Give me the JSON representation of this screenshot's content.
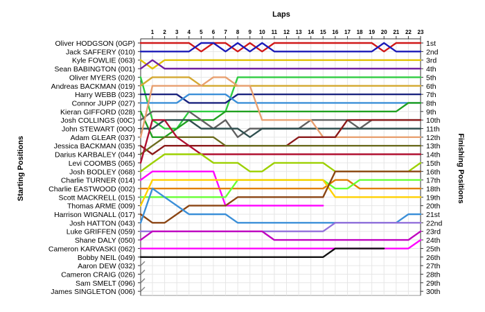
{
  "chart_data": {
    "type": "line",
    "title": "",
    "xlabel": "Laps",
    "ylabel_left": "Starting Positions",
    "ylabel_right": "Finishing Positions",
    "laps": [
      1,
      2,
      3,
      4,
      5,
      6,
      7,
      8,
      9,
      10,
      11,
      12,
      13,
      14,
      15,
      16,
      17,
      18,
      19,
      20,
      21,
      22,
      23
    ],
    "grid": true,
    "drivers": [
      "Oliver HODGSON (0GP)",
      "Jack SAFFERY (010)",
      "Kyle FOWLIE (063)",
      "Sean BABINGTON (001)",
      "Oliver MYERS (020)",
      "Andreas BACKMAN (019)",
      "Harry WEBB (023)",
      "Connor JUPP (027)",
      "Kieran GIFFORD (028)",
      "Josh COLLINGS (00C)",
      "John STEWART (00O)",
      "Adam GLEAR (037)",
      "Jessica BACKMAN (035)",
      "Darius KARBALEY (044)",
      "Levi COOMBS (065)",
      "Josh BODLEY (068)",
      "Charlie TURNER (014)",
      "Charlie EASTWOOD (002)",
      "Scott MACKRELL (015)",
      "Thomas ARME (009)",
      "Harrison WIGNALL (017)",
      "Josh HATTON (043)",
      "Luke GRIFFEN (059)",
      "Shane DALY (050)",
      "Cameron KARVASKI (062)",
      "Bobby NEIL (049)",
      "Aaron DEW (032)",
      "Cameron CRAIG (026)",
      "Sam SMELT (096)",
      "James SINGLETON (006)"
    ],
    "finish_labels": [
      "1st",
      "2nd",
      "3rd",
      "4th",
      "5th",
      "6th",
      "7th",
      "8th",
      "9th",
      "10th",
      "11th",
      "12th",
      "13th",
      "14th",
      "15th",
      "16th",
      "17th",
      "18th",
      "19th",
      "20th",
      "21st",
      "22nd",
      "23rd",
      "24th",
      "25th",
      "26th",
      "27th",
      "28th",
      "29th",
      "30th"
    ],
    "series": [
      {
        "name": "Oliver HODGSON (0GP)",
        "color": "#d01818",
        "start": 1,
        "positions": [
          1,
          1,
          1,
          1,
          2,
          1,
          1,
          2,
          1,
          2,
          1,
          1,
          1,
          1,
          1,
          1,
          1,
          1,
          1,
          2,
          1,
          1,
          1
        ]
      },
      {
        "name": "Jack SAFFERY (010)",
        "color": "#1a1ab8",
        "start": 2,
        "positions": [
          2,
          2,
          2,
          2,
          1,
          1,
          2,
          1,
          2,
          1,
          2,
          2,
          2,
          2,
          2,
          2,
          2,
          2,
          2,
          1,
          2,
          2,
          2
        ]
      },
      {
        "name": "Kyle FOWLIE (063)",
        "color": "#e0c000",
        "start": 3,
        "positions": [
          4,
          3,
          3,
          3,
          3,
          3,
          3,
          3,
          3,
          3,
          3,
          3,
          3,
          3,
          3,
          3,
          3,
          3,
          3,
          3,
          3,
          3,
          3
        ]
      },
      {
        "name": "Sean BABINGTON (001)",
        "color": "#7020a0",
        "start": 4,
        "positions": [
          3,
          4,
          4,
          4,
          4,
          4,
          4,
          4,
          4,
          4,
          4,
          4,
          4,
          4,
          4,
          4,
          4,
          4,
          4,
          4,
          4,
          4,
          4
        ]
      },
      {
        "name": "Oliver MYERS (020)",
        "color": "#2ecc40",
        "start": 5,
        "positions": [
          10,
          11,
          11,
          9,
          9,
          9,
          9,
          5,
          5,
          5,
          5,
          5,
          5,
          5,
          5,
          5,
          5,
          5,
          5,
          5,
          5,
          5,
          5
        ]
      },
      {
        "name": "Andreas BACKMAN (019)",
        "color": "#d4a830",
        "start": 6,
        "positions": [
          5,
          5,
          5,
          5,
          6,
          6,
          6,
          6,
          6,
          6,
          6,
          6,
          6,
          6,
          6,
          6,
          6,
          6,
          6,
          6,
          6,
          6,
          6
        ]
      },
      {
        "name": "Harry WEBB (023)",
        "color": "#1a237e",
        "start": 7,
        "positions": [
          7,
          7,
          7,
          8,
          8,
          8,
          8,
          7,
          7,
          7,
          7,
          7,
          7,
          7,
          7,
          7,
          7,
          7,
          7,
          7,
          7,
          7,
          7
        ]
      },
      {
        "name": "Connor JUPP (027)",
        "color": "#3b8fd8",
        "start": 8,
        "positions": [
          8,
          8,
          8,
          7,
          7,
          7,
          7,
          8,
          8,
          8,
          8,
          8,
          8,
          8,
          8,
          8,
          8,
          8,
          8,
          8,
          8,
          8,
          8
        ]
      },
      {
        "name": "Kieran GIFFORD (028)",
        "color": "#20a020",
        "start": 9,
        "positions": [
          12,
          12,
          11,
          10,
          10,
          10,
          9,
          9,
          9,
          9,
          9,
          9,
          9,
          9,
          9,
          9,
          9,
          9,
          9,
          9,
          9,
          8,
          8
        ]
      },
      {
        "name": "Josh COLLINGS (00C)",
        "color": "#606060",
        "start": 10,
        "positions": [
          9,
          9,
          9,
          9,
          10,
          11,
          10,
          12,
          11,
          11,
          11,
          11,
          11,
          10,
          10,
          10,
          10,
          11,
          10,
          10,
          10,
          10,
          10
        ]
      },
      {
        "name": "John STEWART (00O)",
        "color": "#2f4f4f",
        "start": 11,
        "positions": [
          11,
          10,
          10,
          10,
          11,
          11,
          11,
          11,
          12,
          11,
          11,
          11,
          11,
          11,
          11,
          11,
          11,
          11,
          11,
          11,
          11,
          11,
          11
        ]
      },
      {
        "name": "Adam GLEAR (037)",
        "color": "#e8a070",
        "start": 12,
        "positions": [
          6,
          6,
          6,
          6,
          6,
          5,
          5,
          6,
          6,
          10,
          10,
          10,
          10,
          10,
          12,
          12,
          12,
          12,
          12,
          12,
          12,
          12,
          12
        ]
      },
      {
        "name": "Jessica BACKMAN (035)",
        "color": "#8b1a1a",
        "start": 13,
        "positions": [
          14,
          13,
          13,
          13,
          13,
          13,
          13,
          13,
          13,
          13,
          13,
          13,
          12,
          12,
          12,
          12,
          10,
          10,
          10,
          10,
          10,
          10,
          10
        ]
      },
      {
        "name": "Darius KARBALEY (044)",
        "color": "#6b6b1e",
        "start": 14,
        "positions": [
          13,
          12,
          12,
          12,
          12,
          12,
          13,
          13,
          13,
          13,
          13,
          13,
          13,
          13,
          13,
          13,
          13,
          13,
          13,
          13,
          13,
          13,
          13
        ]
      },
      {
        "name": "Levi COOMBS (065)",
        "color": "#b01030",
        "start": 15,
        "positions": [
          10,
          10,
          12,
          13,
          14,
          14,
          14,
          14,
          14,
          14,
          14,
          14,
          14,
          14,
          14,
          14,
          14,
          14,
          14,
          14,
          14,
          14,
          14
        ]
      },
      {
        "name": "Josh BODLEY (068)",
        "color": "#9cd000",
        "start": 16,
        "positions": [
          15,
          14,
          14,
          14,
          14,
          15,
          15,
          15,
          16,
          16,
          15,
          15,
          15,
          15,
          15,
          16,
          16,
          16,
          16,
          16,
          16,
          16,
          15
        ]
      },
      {
        "name": "Charlie TURNER (014)",
        "color": "#ff00ff",
        "start": 17,
        "positions": [
          16,
          16,
          16,
          16,
          16,
          16,
          20,
          20,
          20,
          20,
          20,
          20,
          20,
          20,
          20
        ]
      },
      {
        "name": "Charlie EASTWOOD (002)",
        "color": "#e08000",
        "start": 18,
        "positions": [
          18,
          18,
          18,
          18,
          18,
          18,
          18,
          18,
          18,
          18,
          18,
          18,
          18,
          18,
          18,
          17,
          17,
          18,
          18,
          18,
          18,
          18,
          18
        ]
      },
      {
        "name": "Scott MACKRELL (015)",
        "color": "#66ff33",
        "start": 19,
        "positions": [
          19,
          19,
          19,
          19,
          19,
          19,
          19,
          17,
          17,
          17,
          17,
          17,
          17,
          17,
          17,
          18,
          18,
          17,
          17,
          17,
          17,
          17,
          17
        ]
      },
      {
        "name": "Thomas ARME (009)",
        "color": "#ffd000",
        "start": 20,
        "positions": [
          17,
          17,
          17,
          17,
          17,
          17,
          17,
          17,
          17,
          17,
          17,
          17,
          17,
          17,
          17,
          19,
          19,
          19,
          19,
          19,
          19,
          19,
          19
        ]
      },
      {
        "name": "Harrison WIGNALL (017)",
        "color": "#8b4513",
        "start": 21,
        "positions": [
          22,
          22,
          21,
          20,
          20,
          20,
          20,
          19,
          19,
          19,
          19,
          19,
          19,
          19,
          19,
          16,
          16,
          16,
          16,
          16,
          16,
          16,
          16
        ]
      },
      {
        "name": "Josh HATTON (043)",
        "color": "#3b8fd8",
        "start": 22,
        "positions": [
          18,
          19,
          20,
          21,
          21,
          21,
          21,
          22,
          22,
          22,
          22,
          22,
          22,
          22,
          22,
          22,
          22,
          22,
          22,
          22,
          22,
          21,
          21
        ]
      },
      {
        "name": "Luke GRIFFEN (059)",
        "color": "#9370db",
        "start": 23,
        "positions": [
          23,
          23,
          23,
          23,
          23,
          23,
          23,
          23,
          23,
          23,
          23,
          23,
          23,
          23,
          23,
          22,
          22,
          22,
          22,
          22,
          22,
          22,
          22
        ]
      },
      {
        "name": "Shane DALY (050)",
        "color": "#c000c0",
        "start": 24,
        "positions": [
          23,
          23,
          23,
          23,
          23,
          23,
          23,
          23,
          23,
          23,
          24,
          24,
          24,
          24,
          24,
          24,
          24,
          24,
          24,
          24,
          24,
          24,
          23
        ]
      },
      {
        "name": "Cameron KARVASKI (062)",
        "color": "#ff00ff",
        "start": 25,
        "positions": [
          25,
          25,
          25,
          25,
          25,
          25,
          25,
          25,
          25,
          25,
          25,
          25,
          25,
          25,
          25,
          25,
          25,
          25,
          25,
          25,
          25,
          25,
          24
        ]
      },
      {
        "name": "Bobby NEIL (049)",
        "color": "#111111",
        "start": 26,
        "positions": [
          26,
          26,
          26,
          26,
          26,
          26,
          26,
          26,
          26,
          26,
          26,
          26,
          26,
          26,
          26,
          25,
          25,
          25,
          25,
          25
        ]
      }
    ]
  }
}
